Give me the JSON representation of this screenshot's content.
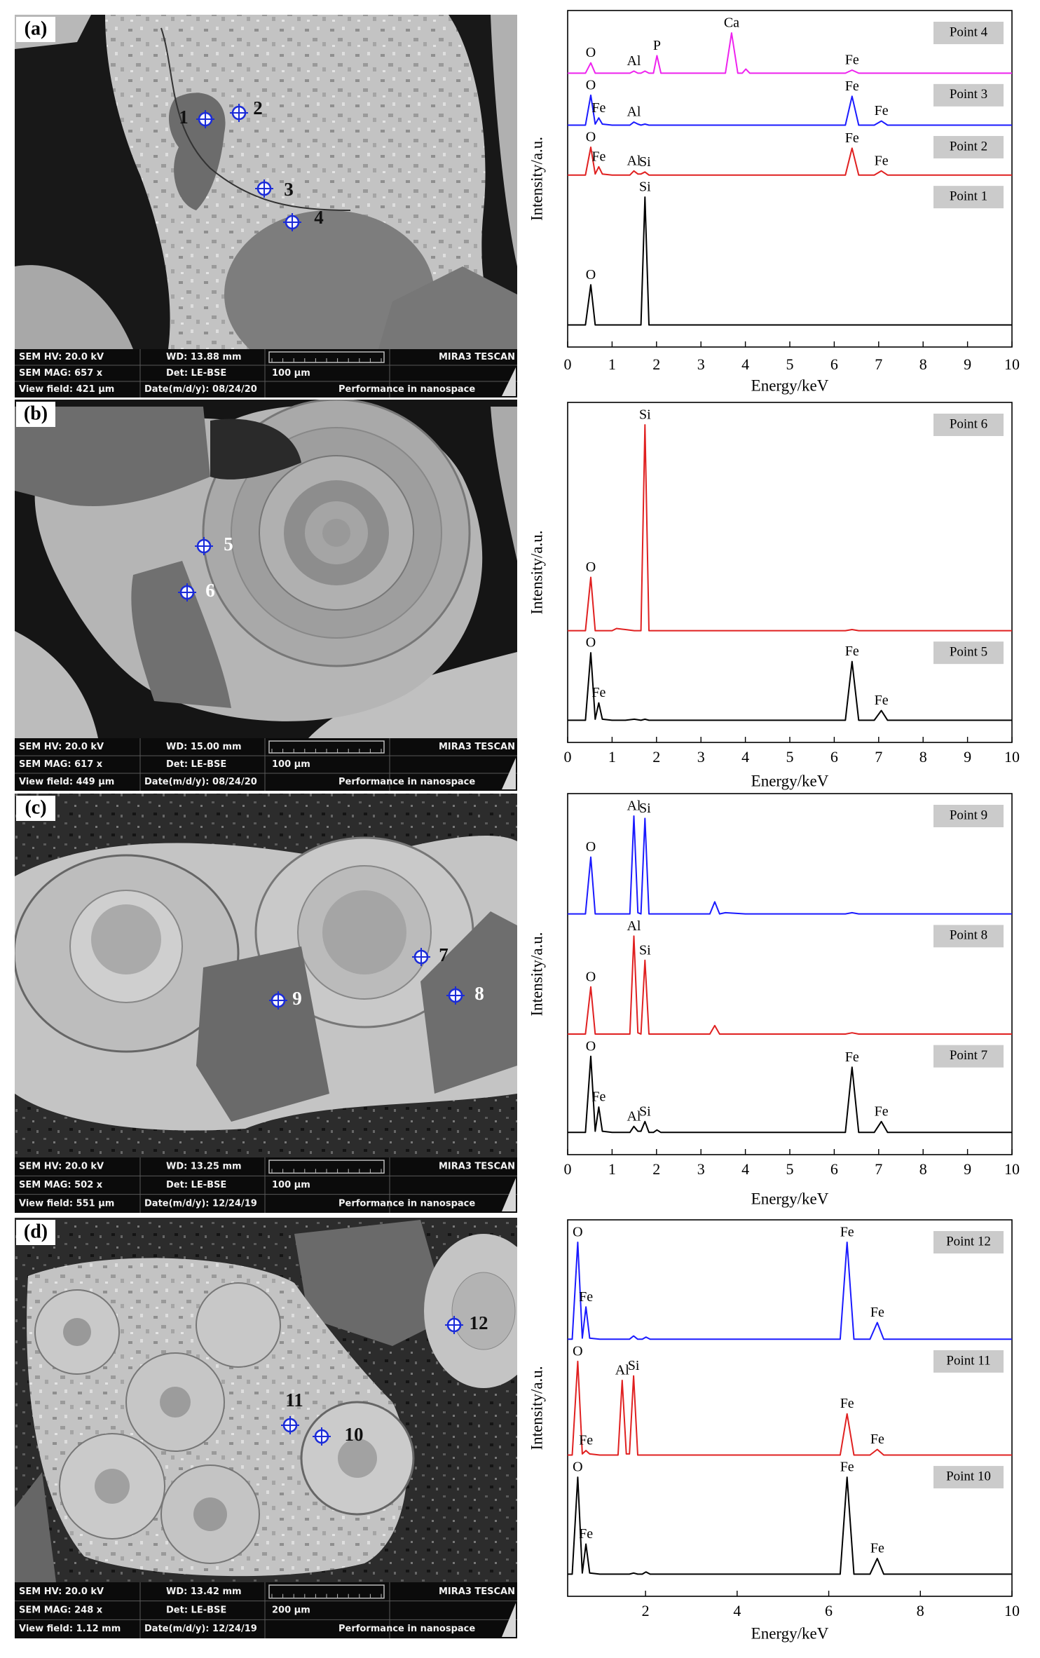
{
  "sem_panels": [
    {
      "label": "(a)",
      "points": [
        "1",
        "2",
        "3",
        "4"
      ],
      "info": {
        "hv": "SEM HV: 20.0 kV",
        "wd": "WD: 13.88 mm",
        "brand": "MIRA3 TESCAN",
        "mag": "SEM MAG: 657 x",
        "det": "Det: LE-BSE",
        "scale": "100 μm",
        "view": "View field: 421 μm",
        "date": "Date(m/d/y): 08/24/20",
        "slogan": "Performance in nanospace"
      }
    },
    {
      "label": "(b)",
      "points": [
        "5",
        "6"
      ],
      "info": {
        "hv": "SEM HV: 20.0 kV",
        "wd": "WD: 15.00 mm",
        "brand": "MIRA3 TESCAN",
        "mag": "SEM MAG: 617 x",
        "det": "Det: LE-BSE",
        "scale": "100 μm",
        "view": "View field: 449 μm",
        "date": "Date(m/d/y): 08/24/20",
        "slogan": "Performance in nanospace"
      }
    },
    {
      "label": "(c)",
      "points": [
        "7",
        "8",
        "9"
      ],
      "info": {
        "hv": "SEM HV: 20.0 kV",
        "wd": "WD: 13.25 mm",
        "brand": "MIRA3 TESCAN",
        "mag": "SEM MAG: 502 x",
        "det": "Det: LE-BSE",
        "scale": "100 μm",
        "view": "View field: 551 μm",
        "date": "Date(m/d/y): 12/24/19",
        "slogan": "Performance in nanospace"
      }
    },
    {
      "label": "(d)",
      "points": [
        "10",
        "11",
        "12"
      ],
      "info": {
        "hv": "SEM HV: 20.0 kV",
        "wd": "WD: 13.42 mm",
        "brand": "MIRA3 TESCAN",
        "mag": "SEM MAG: 248 x",
        "det": "Det: LE-BSE",
        "scale": "200 μm",
        "view": "View field: 1.12 mm",
        "date": "Date(m/d/y): 12/24/19",
        "slogan": "Performance in nanospace"
      }
    }
  ],
  "chart_data": [
    {
      "type": "line",
      "x_label": "Energy/keV",
      "y_label": "Intensity/a.u.",
      "xlim": [
        0,
        10
      ],
      "xticks": [
        0,
        1,
        2,
        3,
        4,
        5,
        6,
        7,
        8,
        9,
        10
      ],
      "x": [
        0,
        0.4,
        0.52,
        0.62,
        0.7,
        0.78,
        1.0,
        1.4,
        1.49,
        1.58,
        1.65,
        1.74,
        1.83,
        1.93,
        2.01,
        2.1,
        2.5,
        3.0,
        3.55,
        3.69,
        3.83,
        3.93,
        4.01,
        4.1,
        5.0,
        6.0,
        6.25,
        6.4,
        6.55,
        6.9,
        7.06,
        7.2,
        8.0,
        9.0,
        10.0
      ],
      "series": [
        {
          "name": "Point 1",
          "color": "#000000",
          "values": [
            1,
            1,
            40,
            1,
            1,
            1,
            1,
            1,
            1,
            1,
            1,
            125,
            1,
            1,
            1,
            1,
            1,
            1,
            1,
            1,
            1,
            1,
            1,
            1,
            1,
            1,
            1,
            1,
            1,
            1,
            1,
            1,
            1,
            1,
            1
          ],
          "annotations": [
            {
              "text": "O",
              "x": 0.52
            },
            {
              "text": "Si",
              "x": 1.74
            }
          ]
        },
        {
          "name": "Point 2",
          "color": "#e02020",
          "values": [
            1,
            1,
            28,
            2,
            9,
            2,
            1,
            1,
            5,
            2,
            2,
            4,
            1,
            1,
            1,
            1,
            1,
            1,
            1,
            1,
            1,
            1,
            1,
            1,
            1,
            1,
            1,
            27,
            1,
            1,
            5,
            1,
            1,
            1,
            1
          ],
          "annotations": [
            {
              "text": "O",
              "x": 0.52
            },
            {
              "text": "Fe",
              "x": 0.7
            },
            {
              "text": "Al",
              "x": 1.49
            },
            {
              "text": "Si",
              "x": 1.74
            },
            {
              "text": "Fe",
              "x": 6.4
            },
            {
              "text": "Fe",
              "x": 7.06
            }
          ]
        },
        {
          "name": "Point 3",
          "color": "#1a1aff",
          "values": [
            1,
            1,
            30,
            2,
            8,
            2,
            1,
            1,
            4,
            2,
            1,
            2,
            1,
            1,
            1,
            1,
            1,
            1,
            1,
            1,
            1,
            1,
            1,
            1,
            1,
            1,
            1,
            29,
            1,
            1,
            5,
            1,
            1,
            1,
            1
          ],
          "annotations": [
            {
              "text": "O",
              "x": 0.52
            },
            {
              "text": "Fe",
              "x": 0.7
            },
            {
              "text": "Al",
              "x": 1.49
            },
            {
              "text": "Fe",
              "x": 6.4
            },
            {
              "text": "Fe",
              "x": 7.06
            }
          ]
        },
        {
          "name": "Point 4",
          "color": "#ee22ee",
          "values": [
            1,
            1,
            11,
            1,
            1,
            1,
            1,
            1,
            3,
            1,
            1,
            3,
            1,
            1,
            18,
            1,
            1,
            1,
            1,
            40,
            1,
            1,
            5,
            1,
            1,
            1,
            1,
            4,
            1,
            1,
            1,
            1,
            1,
            1,
            1
          ],
          "annotations": [
            {
              "text": "O",
              "x": 0.52
            },
            {
              "text": "Al",
              "x": 1.49
            },
            {
              "text": "P",
              "x": 2.01
            },
            {
              "text": "Ca",
              "x": 3.69
            },
            {
              "text": "Fe",
              "x": 6.4
            }
          ]
        }
      ]
    },
    {
      "type": "line",
      "x_label": "Energy/keV",
      "y_label": "Intensity/a.u.",
      "xlim": [
        0,
        10
      ],
      "xticks": [
        0,
        1,
        2,
        3,
        4,
        5,
        6,
        7,
        8,
        9,
        10
      ],
      "x": [
        0,
        0.4,
        0.52,
        0.62,
        0.7,
        0.78,
        1.0,
        1.1,
        1.3,
        1.5,
        1.65,
        1.74,
        1.83,
        2.0,
        2.5,
        3,
        4,
        5,
        6,
        6.25,
        6.4,
        6.55,
        6.9,
        7.06,
        7.2,
        8,
        9,
        10
      ],
      "series": [
        {
          "name": "Point 5",
          "color": "#000000",
          "values": [
            1,
            1,
            63,
            2,
            17,
            2,
            1,
            1,
            1,
            2,
            1,
            2,
            1,
            1,
            1,
            1,
            1,
            1,
            1,
            1,
            55,
            1,
            1,
            10,
            1,
            1,
            1,
            1
          ],
          "annotations": [
            {
              "text": "O",
              "x": 0.52
            },
            {
              "text": "Fe",
              "x": 0.7
            },
            {
              "text": "Fe",
              "x": 6.4
            },
            {
              "text": "Fe",
              "x": 7.06
            }
          ]
        },
        {
          "name": "Point 6",
          "color": "#e02020",
          "values": [
            1,
            1,
            50,
            1,
            1,
            1,
            1,
            3,
            2,
            1,
            1,
            190,
            1,
            1,
            1,
            1,
            1,
            1,
            1,
            1,
            2,
            1,
            1,
            1,
            1,
            1,
            1,
            1
          ],
          "annotations": [
            {
              "text": "O",
              "x": 0.52
            },
            {
              "text": "Si",
              "x": 1.74
            }
          ]
        }
      ]
    },
    {
      "type": "line",
      "x_label": "Energy/keV",
      "y_label": "Intensity/a.u.",
      "xlim": [
        0,
        10
      ],
      "xticks": [
        0,
        1,
        2,
        3,
        4,
        5,
        6,
        7,
        8,
        9,
        10
      ],
      "x": [
        0,
        0.4,
        0.52,
        0.62,
        0.7,
        0.78,
        1.0,
        1.4,
        1.49,
        1.58,
        1.65,
        1.74,
        1.83,
        1.93,
        2.01,
        2.1,
        2.5,
        3.0,
        3.2,
        3.31,
        3.42,
        3.55,
        4,
        5,
        6,
        6.25,
        6.4,
        6.55,
        6.9,
        7.06,
        7.2,
        8,
        9,
        10
      ],
      "series": [
        {
          "name": "Point 7",
          "color": "#000000",
          "values": [
            1,
            1,
            64,
            2,
            22,
            2,
            1,
            1,
            6,
            2,
            2,
            10,
            1,
            1,
            3,
            1,
            1,
            1,
            1,
            1,
            1,
            1,
            1,
            1,
            1,
            1,
            55,
            1,
            1,
            10,
            1,
            1,
            1,
            1
          ],
          "annotations": [
            {
              "text": "O",
              "x": 0.52
            },
            {
              "text": "Fe",
              "x": 0.7
            },
            {
              "text": "Al",
              "x": 1.49
            },
            {
              "text": "Si",
              "x": 1.74
            },
            {
              "text": "Fe",
              "x": 6.4
            },
            {
              "text": "Fe",
              "x": 7.06
            }
          ]
        },
        {
          "name": "Point 8",
          "color": "#e02020",
          "values": [
            1,
            1,
            40,
            1,
            1,
            1,
            1,
            1,
            82,
            2,
            1,
            62,
            1,
            1,
            1,
            1,
            1,
            1,
            1,
            8,
            1,
            1,
            1,
            1,
            1,
            1,
            2,
            1,
            1,
            1,
            1,
            1,
            1,
            1
          ],
          "annotations": [
            {
              "text": "O",
              "x": 0.52
            },
            {
              "text": "Al",
              "x": 1.49
            },
            {
              "text": "Si",
              "x": 1.74
            }
          ]
        },
        {
          "name": "Point 9",
          "color": "#1a1aff",
          "values": [
            1,
            1,
            48,
            1,
            1,
            1,
            1,
            1,
            82,
            2,
            1,
            80,
            1,
            1,
            1,
            1,
            1,
            1,
            1,
            11,
            1,
            2,
            1,
            1,
            1,
            1,
            2,
            1,
            1,
            1,
            1,
            1,
            1,
            1
          ],
          "annotations": [
            {
              "text": "O",
              "x": 0.52
            },
            {
              "text": "Al",
              "x": 1.49
            },
            {
              "text": "Si",
              "x": 1.74
            }
          ]
        }
      ]
    },
    {
      "type": "line",
      "x_label": "Energy/keV",
      "y_label": "Intensity/a.u.",
      "xlim": [
        0.3,
        10
      ],
      "xticks": [
        2,
        4,
        6,
        8,
        10
      ],
      "x": [
        0.3,
        0.4,
        0.52,
        0.62,
        0.7,
        0.78,
        1.0,
        1.4,
        1.49,
        1.58,
        1.65,
        1.74,
        1.83,
        1.93,
        2.01,
        2.1,
        2.5,
        3.0,
        4,
        5,
        6,
        6.25,
        6.4,
        6.55,
        6.9,
        7.06,
        7.2,
        8,
        9,
        10
      ],
      "series": [
        {
          "name": "Point 10",
          "color": "#000000",
          "values": [
            1,
            1,
            88,
            2,
            28,
            2,
            1,
            1,
            1,
            1,
            1,
            2,
            1,
            1,
            3,
            1,
            1,
            1,
            1,
            1,
            1,
            1,
            88,
            1,
            1,
            15,
            1,
            1,
            1,
            1
          ],
          "annotations": [
            {
              "text": "O",
              "x": 0.52
            },
            {
              "text": "Fe",
              "x": 0.7
            },
            {
              "text": "Fe",
              "x": 6.4
            },
            {
              "text": "Fe",
              "x": 7.06
            }
          ]
        },
        {
          "name": "Point 11",
          "color": "#e02020",
          "values": [
            1,
            1,
            85,
            2,
            5,
            2,
            1,
            1,
            68,
            2,
            2,
            72,
            1,
            1,
            1,
            1,
            1,
            1,
            1,
            1,
            1,
            1,
            38,
            1,
            1,
            6,
            1,
            1,
            1,
            1
          ],
          "annotations": [
            {
              "text": "O",
              "x": 0.52
            },
            {
              "text": "Fe",
              "x": 0.7
            },
            {
              "text": "Al",
              "x": 1.49
            },
            {
              "text": "Si",
              "x": 1.74
            },
            {
              "text": "Fe",
              "x": 6.4
            },
            {
              "text": "Fe",
              "x": 7.06
            }
          ]
        },
        {
          "name": "Point 12",
          "color": "#1a1aff",
          "values": [
            1,
            1,
            88,
            2,
            30,
            2,
            1,
            1,
            1,
            1,
            1,
            4,
            1,
            1,
            3,
            1,
            1,
            1,
            1,
            1,
            1,
            1,
            88,
            1,
            1,
            16,
            1,
            1,
            1,
            1
          ],
          "annotations": [
            {
              "text": "O",
              "x": 0.52
            },
            {
              "text": "Fe",
              "x": 0.7
            },
            {
              "text": "Fe",
              "x": 6.4
            },
            {
              "text": "Fe",
              "x": 7.06
            }
          ]
        }
      ]
    }
  ]
}
